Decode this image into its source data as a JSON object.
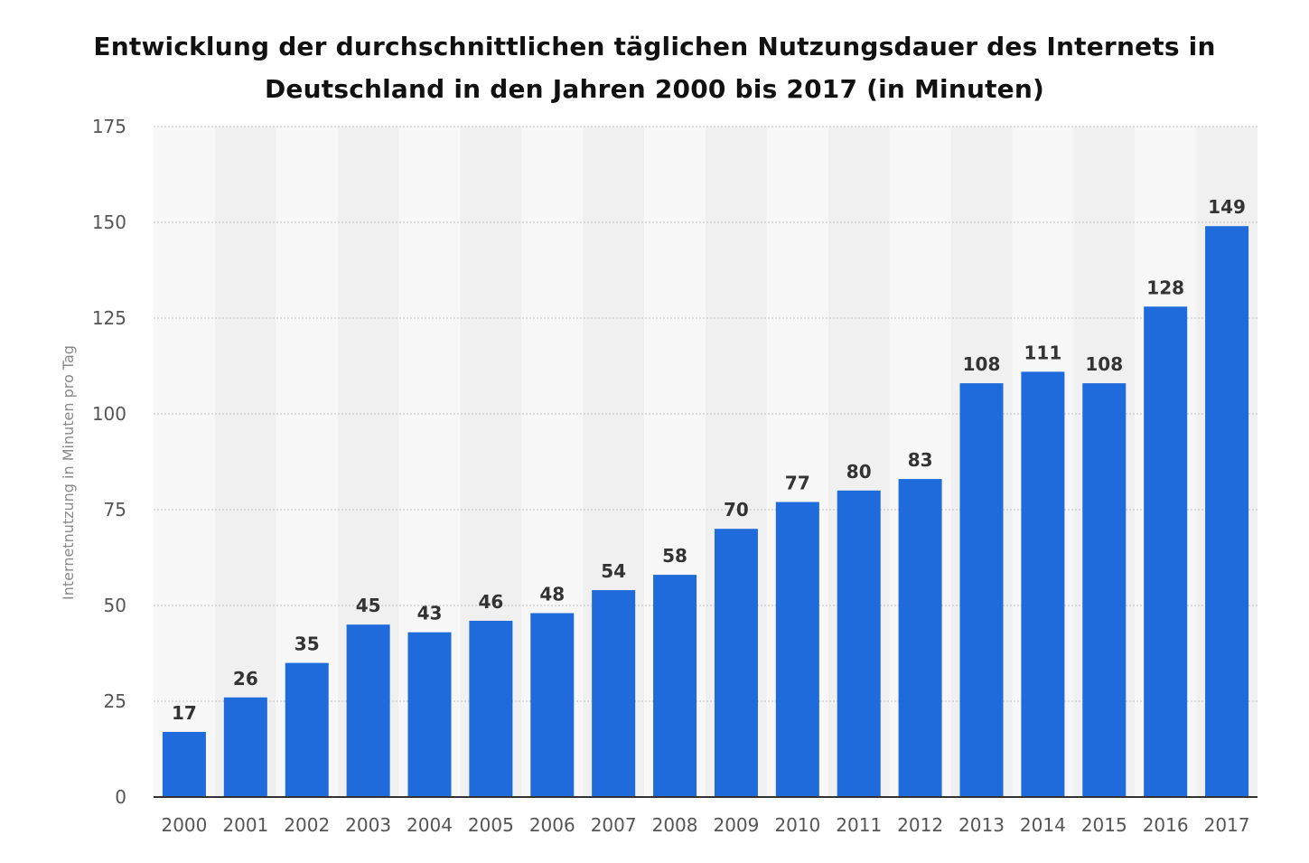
{
  "chart_data": {
    "type": "bar",
    "title_lines": [
      "Entwicklung der durchschnittlichen täglichen Nutzungsdauer des Internets in",
      "Deutschland in den Jahren 2000 bis 2017 (in Minuten)"
    ],
    "xlabel": "",
    "ylabel": "Internetnutzung in Minuten pro Tag",
    "ylim": [
      0,
      175
    ],
    "yticks": [
      0,
      25,
      50,
      75,
      100,
      125,
      150,
      175
    ],
    "categories": [
      "2000",
      "2001",
      "2002",
      "2003",
      "2004",
      "2005",
      "2006",
      "2007",
      "2008",
      "2009",
      "2010",
      "2011",
      "2012",
      "2013",
      "2014",
      "2015",
      "2016",
      "2017"
    ],
    "values": [
      17,
      26,
      35,
      45,
      43,
      46,
      48,
      54,
      58,
      70,
      77,
      80,
      83,
      108,
      111,
      108,
      128,
      149
    ],
    "grid": true,
    "colors": {
      "bar": "#1f6bdb",
      "band_light": "#f7f7f7",
      "band_dark": "#f0f0f0",
      "grid": "#bfbfbf",
      "axis": "#333333"
    }
  }
}
